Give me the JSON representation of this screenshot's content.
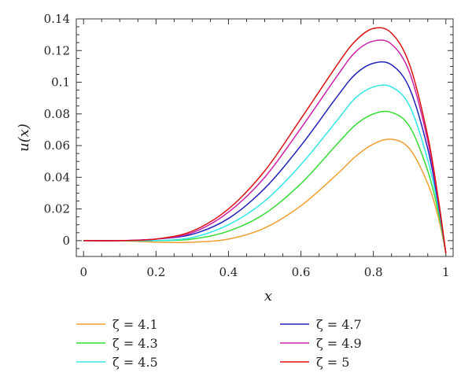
{
  "chart_data": {
    "type": "line",
    "xlabel": "x",
    "ylabel": "u(x)",
    "xlim": [
      -0.02,
      1.02
    ],
    "ylim": [
      -0.01,
      0.14
    ],
    "x_ticks": [
      0,
      0.2,
      0.4,
      0.6,
      0.8,
      1
    ],
    "x_tick_labels": [
      "0",
      "0.2",
      "0.4",
      "0.6",
      "0.8",
      "1"
    ],
    "y_ticks": [
      0,
      0.02,
      0.04,
      0.06,
      0.08,
      0.1,
      0.12,
      0.14
    ],
    "y_tick_labels": [
      "0",
      "0.02",
      "0.04",
      "0.06",
      "0.08",
      "0.1",
      "0.12",
      "0.14"
    ],
    "grid": false,
    "legend_placement": "below",
    "x": [
      0,
      0.1,
      0.2,
      0.3,
      0.4,
      0.5,
      0.6,
      0.7,
      0.75,
      0.8,
      0.85,
      0.9,
      0.95,
      0.98,
      1.0
    ],
    "series": [
      {
        "name": "ζ = 4.1",
        "color": "#f0a030",
        "values": [
          0,
          0,
          -0.001,
          -0.001,
          0.001,
          0.008,
          0.022,
          0.042,
          0.053,
          0.061,
          0.064,
          0.058,
          0.036,
          0.014,
          -0.008
        ]
      },
      {
        "name": "ζ = 4.3",
        "color": "#33dd33",
        "values": [
          0,
          0,
          0,
          0.001,
          0.006,
          0.017,
          0.036,
          0.061,
          0.073,
          0.08,
          0.081,
          0.072,
          0.044,
          0.017,
          -0.008
        ]
      },
      {
        "name": "ζ = 4.5",
        "color": "#33e6e6",
        "values": [
          0,
          0,
          0,
          0.002,
          0.01,
          0.025,
          0.048,
          0.076,
          0.09,
          0.097,
          0.097,
          0.085,
          0.051,
          0.02,
          -0.008
        ]
      },
      {
        "name": "ζ = 4.7",
        "color": "#2222bb",
        "values": [
          0,
          0,
          0.001,
          0.004,
          0.014,
          0.033,
          0.06,
          0.091,
          0.105,
          0.112,
          0.111,
          0.096,
          0.058,
          0.022,
          -0.008
        ]
      },
      {
        "name": "ζ = 4.9",
        "color": "#cc22aa",
        "values": [
          0,
          0,
          0.001,
          0.005,
          0.018,
          0.04,
          0.071,
          0.104,
          0.119,
          0.126,
          0.124,
          0.106,
          0.063,
          0.024,
          -0.008
        ]
      },
      {
        "name": "ζ = 5",
        "color": "#dd1111",
        "values": [
          0,
          0,
          0.001,
          0.006,
          0.02,
          0.044,
          0.077,
          0.111,
          0.126,
          0.134,
          0.131,
          0.111,
          0.066,
          0.025,
          -0.008
        ]
      }
    ]
  }
}
